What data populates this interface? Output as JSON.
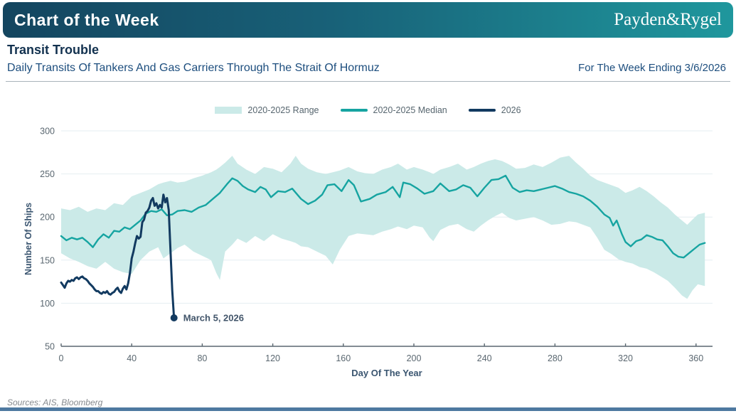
{
  "header": {
    "title": "Chart of the Week",
    "brand": "Payden&Rygel"
  },
  "titles": {
    "title": "Transit Trouble",
    "subtitle": "Daily Transits Of Tankers And Gas Carriers Through The Strait Of Hormuz",
    "week_note": "For The Week Ending 3/6/2026"
  },
  "footer": {
    "sources": "Sources: AIS, Bloomberg"
  },
  "colors": {
    "header_gradient_left": "#14455F",
    "header_gradient_right": "#1F979D",
    "header_text": "#FFFFFF",
    "title_text": "#12314F",
    "subtitle_text": "#1D4E7E",
    "range_fill": "#CBEAE8",
    "median_line": "#16A4A1",
    "line_2026": "#123A60",
    "gridline": "#E5EEF1",
    "axis": "#5A6770",
    "tick_label": "#5A6770",
    "axis_title": "#3A5570",
    "annotation_text": "#42556A",
    "legend_text": "#57666F",
    "sources_text": "#85898E",
    "footer_bar": "#4E79A0",
    "divider": "#A9B3BB"
  },
  "chart_data": {
    "type": "line",
    "title": "Daily Transits Of Tankers And Gas Carriers Through The Strait Of Hormuz",
    "xlabel": "Day Of The Year",
    "ylabel": "Number Of Ships",
    "xlim": [
      0,
      366
    ],
    "ylim": [
      50,
      300
    ],
    "x_ticks": [
      0,
      40,
      80,
      120,
      160,
      200,
      240,
      280,
      320,
      360
    ],
    "y_ticks": [
      50,
      100,
      150,
      200,
      250,
      300
    ],
    "grid": "horizontal",
    "legend_position": "top",
    "series": [
      {
        "name": "2020-2025 Range",
        "type": "band",
        "points": [
          [
            0,
            158,
            210
          ],
          [
            5,
            152,
            208
          ],
          [
            10,
            148,
            212
          ],
          [
            15,
            143,
            206
          ],
          [
            20,
            140,
            210
          ],
          [
            25,
            148,
            208
          ],
          [
            30,
            140,
            216
          ],
          [
            35,
            136,
            214
          ],
          [
            40,
            134,
            224
          ],
          [
            45,
            150,
            228
          ],
          [
            50,
            160,
            232
          ],
          [
            55,
            165,
            238
          ],
          [
            58,
            152,
            240
          ],
          [
            62,
            158,
            242
          ],
          [
            66,
            164,
            240
          ],
          [
            70,
            168,
            241
          ],
          [
            75,
            160,
            245
          ],
          [
            80,
            155,
            248
          ],
          [
            85,
            150,
            252
          ],
          [
            88,
            135,
            255
          ],
          [
            90,
            127,
            258
          ],
          [
            93,
            160,
            263
          ],
          [
            97,
            168,
            271
          ],
          [
            100,
            175,
            262
          ],
          [
            105,
            170,
            255
          ],
          [
            110,
            178,
            250
          ],
          [
            115,
            172,
            258
          ],
          [
            120,
            180,
            256
          ],
          [
            125,
            175,
            252
          ],
          [
            130,
            172,
            262
          ],
          [
            133,
            170,
            271
          ],
          [
            136,
            166,
            262
          ],
          [
            140,
            165,
            256
          ],
          [
            145,
            160,
            252
          ],
          [
            150,
            155,
            250
          ],
          [
            154,
            145,
            252
          ],
          [
            158,
            162,
            254
          ],
          [
            163,
            178,
            258
          ],
          [
            168,
            181,
            253
          ],
          [
            172,
            180,
            251
          ],
          [
            177,
            179,
            250
          ],
          [
            182,
            183,
            255
          ],
          [
            187,
            186,
            258
          ],
          [
            191,
            189,
            262
          ],
          [
            196,
            186,
            255
          ],
          [
            200,
            190,
            258
          ],
          [
            205,
            188,
            255
          ],
          [
            209,
            176,
            252
          ],
          [
            211,
            172,
            250
          ],
          [
            215,
            185,
            255
          ],
          [
            220,
            190,
            258
          ],
          [
            225,
            192,
            262
          ],
          [
            230,
            186,
            255
          ],
          [
            234,
            183,
            258
          ],
          [
            238,
            190,
            262
          ],
          [
            242,
            196,
            265
          ],
          [
            246,
            201,
            267
          ],
          [
            250,
            205,
            265
          ],
          [
            254,
            199,
            261
          ],
          [
            258,
            196,
            256
          ],
          [
            263,
            198,
            257
          ],
          [
            268,
            200,
            261
          ],
          [
            273,
            196,
            258
          ],
          [
            278,
            191,
            263
          ],
          [
            283,
            192,
            269
          ],
          [
            288,
            195,
            271
          ],
          [
            292,
            194,
            263
          ],
          [
            296,
            191,
            256
          ],
          [
            300,
            188,
            248
          ],
          [
            304,
            176,
            243
          ],
          [
            308,
            162,
            240
          ],
          [
            312,
            157,
            237
          ],
          [
            316,
            151,
            234
          ],
          [
            320,
            148,
            228
          ],
          [
            324,
            146,
            231
          ],
          [
            328,
            142,
            235
          ],
          [
            332,
            140,
            230
          ],
          [
            336,
            136,
            224
          ],
          [
            340,
            131,
            217
          ],
          [
            344,
            126,
            211
          ],
          [
            348,
            118,
            203
          ],
          [
            352,
            109,
            196
          ],
          [
            355,
            105,
            191
          ],
          [
            358,
            115,
            197
          ],
          [
            361,
            122,
            203
          ],
          [
            365,
            120,
            205
          ]
        ]
      },
      {
        "name": "2020-2025 Median",
        "type": "line",
        "points": [
          [
            0,
            178
          ],
          [
            3,
            173
          ],
          [
            6,
            176
          ],
          [
            9,
            174
          ],
          [
            12,
            176
          ],
          [
            15,
            171
          ],
          [
            18,
            165
          ],
          [
            21,
            174
          ],
          [
            24,
            180
          ],
          [
            27,
            176
          ],
          [
            30,
            184
          ],
          [
            33,
            183
          ],
          [
            36,
            188
          ],
          [
            39,
            186
          ],
          [
            42,
            191
          ],
          [
            45,
            196
          ],
          [
            48,
            204
          ],
          [
            51,
            207
          ],
          [
            54,
            206
          ],
          [
            57,
            209
          ],
          [
            60,
            202
          ],
          [
            63,
            203
          ],
          [
            66,
            207
          ],
          [
            70,
            208
          ],
          [
            74,
            206
          ],
          [
            78,
            211
          ],
          [
            82,
            214
          ],
          [
            86,
            221
          ],
          [
            90,
            228
          ],
          [
            94,
            238
          ],
          [
            97,
            245
          ],
          [
            100,
            242
          ],
          [
            103,
            236
          ],
          [
            106,
            232
          ],
          [
            110,
            229
          ],
          [
            113,
            235
          ],
          [
            116,
            232
          ],
          [
            119,
            223
          ],
          [
            123,
            230
          ],
          [
            127,
            229
          ],
          [
            131,
            233
          ],
          [
            136,
            221
          ],
          [
            140,
            215
          ],
          [
            144,
            219
          ],
          [
            148,
            226
          ],
          [
            151,
            237
          ],
          [
            155,
            238
          ],
          [
            159,
            230
          ],
          [
            163,
            243
          ],
          [
            166,
            237
          ],
          [
            170,
            218
          ],
          [
            175,
            221
          ],
          [
            179,
            226
          ],
          [
            184,
            229
          ],
          [
            188,
            235
          ],
          [
            192,
            223
          ],
          [
            194,
            240
          ],
          [
            198,
            238
          ],
          [
            202,
            233
          ],
          [
            206,
            227
          ],
          [
            211,
            230
          ],
          [
            215,
            239
          ],
          [
            220,
            230
          ],
          [
            224,
            232
          ],
          [
            228,
            237
          ],
          [
            232,
            234
          ],
          [
            236,
            224
          ],
          [
            240,
            234
          ],
          [
            244,
            243
          ],
          [
            248,
            244
          ],
          [
            252,
            248
          ],
          [
            256,
            234
          ],
          [
            260,
            229
          ],
          [
            264,
            231
          ],
          [
            268,
            230
          ],
          [
            272,
            232
          ],
          [
            276,
            234
          ],
          [
            280,
            236
          ],
          [
            284,
            233
          ],
          [
            288,
            229
          ],
          [
            292,
            227
          ],
          [
            296,
            224
          ],
          [
            300,
            219
          ],
          [
            304,
            212
          ],
          [
            308,
            203
          ],
          [
            311,
            199
          ],
          [
            313,
            190
          ],
          [
            315,
            196
          ],
          [
            318,
            180
          ],
          [
            320,
            171
          ],
          [
            323,
            166
          ],
          [
            326,
            172
          ],
          [
            329,
            174
          ],
          [
            332,
            179
          ],
          [
            335,
            177
          ],
          [
            338,
            174
          ],
          [
            341,
            173
          ],
          [
            344,
            166
          ],
          [
            347,
            158
          ],
          [
            350,
            154
          ],
          [
            353,
            153
          ],
          [
            356,
            158
          ],
          [
            359,
            163
          ],
          [
            362,
            168
          ],
          [
            365,
            170
          ]
        ]
      },
      {
        "name": "2026",
        "type": "line",
        "points": [
          [
            0,
            124
          ],
          [
            1,
            121
          ],
          [
            2,
            118
          ],
          [
            3,
            123
          ],
          [
            4,
            126
          ],
          [
            5,
            125
          ],
          [
            6,
            127
          ],
          [
            7,
            126
          ],
          [
            8,
            129
          ],
          [
            9,
            130
          ],
          [
            10,
            128
          ],
          [
            11,
            130
          ],
          [
            12,
            131
          ],
          [
            13,
            129
          ],
          [
            14,
            128
          ],
          [
            15,
            126
          ],
          [
            16,
            123
          ],
          [
            17,
            121
          ],
          [
            18,
            119
          ],
          [
            19,
            116
          ],
          [
            20,
            114
          ],
          [
            21,
            114
          ],
          [
            22,
            112
          ],
          [
            23,
            111
          ],
          [
            24,
            113
          ],
          [
            25,
            112
          ],
          [
            26,
            114
          ],
          [
            27,
            111
          ],
          [
            28,
            110
          ],
          [
            29,
            112
          ],
          [
            30,
            113
          ],
          [
            31,
            116
          ],
          [
            32,
            118
          ],
          [
            33,
            114
          ],
          [
            34,
            112
          ],
          [
            35,
            117
          ],
          [
            36,
            120
          ],
          [
            37,
            116
          ],
          [
            38,
            123
          ],
          [
            39,
            135
          ],
          [
            40,
            152
          ],
          [
            41,
            160
          ],
          [
            42,
            170
          ],
          [
            43,
            178
          ],
          [
            44,
            175
          ],
          [
            45,
            177
          ],
          [
            46,
            194
          ],
          [
            47,
            197
          ],
          [
            48,
            205
          ],
          [
            49,
            207
          ],
          [
            50,
            211
          ],
          [
            51,
            219
          ],
          [
            52,
            222
          ],
          [
            53,
            213
          ],
          [
            54,
            216
          ],
          [
            55,
            210
          ],
          [
            56,
            214
          ],
          [
            57,
            211
          ],
          [
            58,
            226
          ],
          [
            59,
            217
          ],
          [
            60,
            222
          ],
          [
            61,
            208
          ],
          [
            62,
            160
          ],
          [
            63,
            115
          ],
          [
            64,
            83
          ]
        ]
      }
    ],
    "annotation": {
      "label": "March 5, 2026",
      "day": 64,
      "value": 83
    }
  }
}
